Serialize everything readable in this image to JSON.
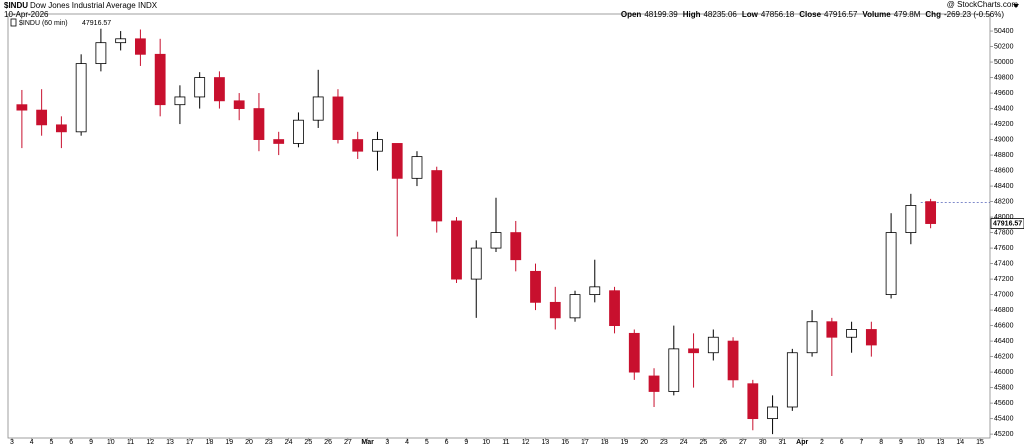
{
  "chart_data": {
    "type": "candlestick",
    "title": "$INDU",
    "subtitle": "Dow Jones Industrial Average",
    "exchange": "INDX",
    "date": "10-Apr-2026",
    "watermark": "@ StockCharts.com",
    "legend": "$INDU (60 min)",
    "quote": [
      {
        "label": "Open",
        "value": 48199.39
      },
      {
        "label": "High",
        "value": 48235.06
      },
      {
        "label": "Low",
        "value": 47856.18
      },
      {
        "label": "Close",
        "value": 47916.57
      },
      {
        "label": "Volume",
        "value": "479.8M"
      },
      {
        "label": "Chg",
        "value": "-269.23 (-0.56%)"
      }
    ],
    "categories": [
      "3",
      "4",
      "5",
      "6",
      "9",
      "10",
      "11",
      "12",
      "13",
      "17",
      "18",
      "19",
      "20",
      "23",
      "24",
      "25",
      "26",
      "27",
      "Mar",
      "3",
      "4",
      "5",
      "6",
      "9",
      "10",
      "11",
      "12",
      "13",
      "16",
      "17",
      "18",
      "19",
      "20",
      "23",
      "24",
      "25",
      "26",
      "27",
      "30",
      "31",
      "Apr",
      "2",
      "6",
      "7",
      "8",
      "9",
      "10",
      "13",
      "14",
      "15"
    ],
    "open": [
      49450,
      49380,
      49190,
      49100,
      49980,
      50250,
      50300,
      50100,
      49450,
      49550,
      49800,
      49500,
      49400,
      49000,
      48950,
      49250,
      49550,
      49000,
      48850,
      48950,
      48500,
      48600,
      47950,
      47200,
      47600,
      47800,
      47300,
      46900,
      46700,
      47000,
      47050,
      46500,
      45950,
      45750,
      46300,
      46250,
      46400,
      45850,
      45400,
      45550,
      46250,
      46650,
      46450,
      46550,
      47000,
      47800,
      48199.39,
      null,
      null,
      null
    ],
    "high": [
      49640,
      49650,
      49300,
      50100,
      50430,
      50400,
      50420,
      50300,
      49700,
      49870,
      49880,
      49600,
      49600,
      49100,
      49350,
      49900,
      49650,
      49100,
      49100,
      48950,
      48850,
      48650,
      48000,
      47700,
      48250,
      47950,
      47400,
      47100,
      47050,
      47450,
      47100,
      46550,
      46050,
      46600,
      46500,
      46550,
      46450,
      45900,
      45700,
      46300,
      46800,
      46700,
      46650,
      46650,
      48050,
      48300,
      48235.06,
      null,
      null,
      null
    ],
    "low": [
      48890,
      49050,
      48890,
      49050,
      49880,
      50150,
      49950,
      49300,
      49200,
      49400,
      49400,
      49250,
      48850,
      48800,
      48900,
      49150,
      48950,
      48750,
      48600,
      47750,
      48400,
      47800,
      47150,
      46700,
      47550,
      47300,
      46800,
      46550,
      46650,
      46900,
      46500,
      45900,
      45550,
      45700,
      45800,
      46150,
      45800,
      45250,
      45200,
      45500,
      46200,
      45950,
      46250,
      46200,
      46950,
      47650,
      47856.18,
      null,
      null,
      null
    ],
    "close": [
      49380,
      49190,
      49100,
      49980,
      50250,
      50300,
      50100,
      49450,
      49550,
      49800,
      49500,
      49400,
      49000,
      48950,
      49250,
      49550,
      49000,
      48850,
      49000,
      48500,
      48780,
      47950,
      47200,
      47600,
      47800,
      47450,
      46900,
      46700,
      47000,
      47100,
      46600,
      46000,
      45750,
      46300,
      46250,
      46450,
      45900,
      45400,
      45550,
      46250,
      46650,
      46450,
      46550,
      46350,
      47800,
      48150,
      47916.57,
      null,
      null,
      null
    ],
    "up_color": "#000000",
    "down_color": "#c8102e",
    "reference_line": 48185.8,
    "ylim": [
      45150,
      50620
    ],
    "yticks": [
      45200,
      45400,
      45600,
      45800,
      46000,
      46200,
      46400,
      46600,
      46800,
      47000,
      47200,
      47400,
      47600,
      47800,
      48000,
      48200,
      48400,
      48600,
      48800,
      49000,
      49200,
      49400,
      49600,
      49800,
      50000,
      50200,
      50400
    ],
    "grid": false
  }
}
